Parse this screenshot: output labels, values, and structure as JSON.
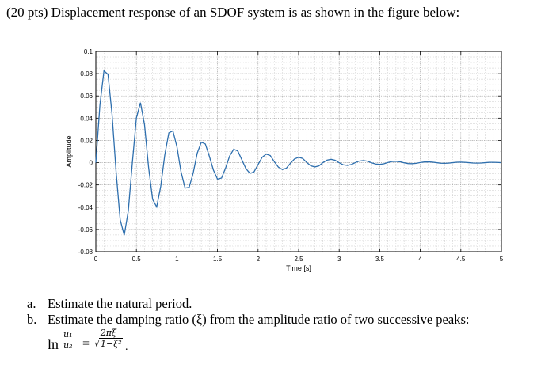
{
  "problem": {
    "intro": "(20 pts) Displacement response of an SDOF system is as shown in the figure below:",
    "items": [
      {
        "label": "a.",
        "text": "Estimate the natural period."
      },
      {
        "label": "b.",
        "text": "Estimate the damping ratio (ξ) from the amplitude ratio of two successive peaks:"
      }
    ],
    "formula": {
      "ln": "ln",
      "num": "u₁",
      "den": "u₂",
      "eq": "=",
      "rhs_num": "2πξ",
      "rhs_den_prefix": "√",
      "rhs_den": "1−ξ²",
      "end": "."
    }
  },
  "chart_data": {
    "type": "line",
    "title": "",
    "xlabel": "Time [s]",
    "ylabel": "Amplitude",
    "xlim": [
      0,
      5
    ],
    "ylim": [
      -0.08,
      0.1
    ],
    "grid": true,
    "grid_minor": true,
    "line_color": "#2e6fae",
    "xticks": [
      0,
      0.5,
      1,
      1.5,
      2,
      2.5,
      3,
      3.5,
      4,
      4.5,
      5
    ],
    "xtick_labels": [
      "0",
      "0.5",
      "1",
      "1.5",
      "2",
      "2.5",
      "3",
      "3.5",
      "4",
      "4.5",
      "5"
    ],
    "yticks": [
      -0.08,
      -0.06,
      -0.04,
      -0.02,
      0,
      0.02,
      0.04,
      0.06,
      0.08,
      0.1
    ],
    "ytick_labels": [
      "-0.08",
      "-0.06",
      "-0.04",
      "-0.02",
      "0",
      "0.02",
      "0.04",
      "0.06",
      "0.08",
      "0.1"
    ],
    "series": [
      {
        "x": [
          0,
          0.05,
          0.1,
          0.15,
          0.2,
          0.25,
          0.3,
          0.35,
          0.4,
          0.45,
          0.5,
          0.55,
          0.6,
          0.65,
          0.7,
          0.75,
          0.8,
          0.85,
          0.9,
          0.95,
          1.0,
          1.05,
          1.1,
          1.15,
          1.2,
          1.25,
          1.3,
          1.35,
          1.4,
          1.45,
          1.5,
          1.55,
          1.6,
          1.65,
          1.7,
          1.75,
          1.8,
          1.85,
          1.9,
          1.95,
          2.0,
          2.05,
          2.1,
          2.15,
          2.2,
          2.25,
          2.3,
          2.35,
          2.4,
          2.45,
          2.5,
          2.55,
          2.6,
          2.65,
          2.7,
          2.75,
          2.8,
          2.85,
          2.9,
          2.95,
          3.0,
          3.05,
          3.1,
          3.15,
          3.2,
          3.25,
          3.3,
          3.35,
          3.4,
          3.45,
          3.5,
          3.55,
          3.6,
          3.65,
          3.7,
          3.75,
          3.8,
          3.85,
          3.9,
          3.95,
          4.0,
          4.05,
          4.1,
          4.15,
          4.2,
          4.25,
          4.3,
          4.35,
          4.4,
          4.45,
          4.5,
          4.55,
          4.6,
          4.65,
          4.7,
          4.75,
          4.8,
          4.85,
          4.9,
          4.95,
          5.0
        ],
        "y": [
          0.0,
          0.0517,
          0.0826,
          0.0793,
          0.0433,
          -0.0085,
          -0.0513,
          -0.0652,
          -0.0434,
          -0.0002,
          0.0402,
          0.0539,
          0.0342,
          -0.004,
          -0.0329,
          -0.0398,
          -0.0213,
          0.007,
          0.0268,
          0.0286,
          0.0143,
          -0.0082,
          -0.0228,
          -0.0222,
          -0.0094,
          0.0085,
          0.0184,
          0.0168,
          0.0057,
          -0.0067,
          -0.0148,
          -0.0138,
          -0.0047,
          0.0061,
          0.0121,
          0.0105,
          0.0026,
          -0.0053,
          -0.0096,
          -0.0083,
          -0.0017,
          0.0048,
          0.0077,
          0.0064,
          0.0009,
          -0.004,
          -0.0062,
          -0.0049,
          -0.0004,
          0.0034,
          0.0048,
          0.0038,
          0.0002,
          -0.0028,
          -0.0038,
          -0.0029,
          0.0001,
          0.0023,
          0.003,
          0.0022,
          -0.0001,
          -0.0019,
          -0.0024,
          -0.0017,
          0.0001,
          0.0015,
          0.0019,
          0.0013,
          -0.0001,
          -0.0012,
          -0.0015,
          -0.001,
          0.0001,
          0.001,
          0.0012,
          0.0008,
          -0.0001,
          -0.0008,
          -0.0009,
          -0.0006,
          0.0001,
          0.0006,
          0.0007,
          0.0005,
          0.0,
          -0.0005,
          -0.0006,
          -0.0004,
          0.0,
          0.0004,
          0.0005,
          0.0003,
          0.0,
          -0.0003,
          -0.0004,
          -0.0003,
          0.0,
          0.0003,
          0.0003,
          0.0002,
          0.0
        ]
      }
    ]
  }
}
